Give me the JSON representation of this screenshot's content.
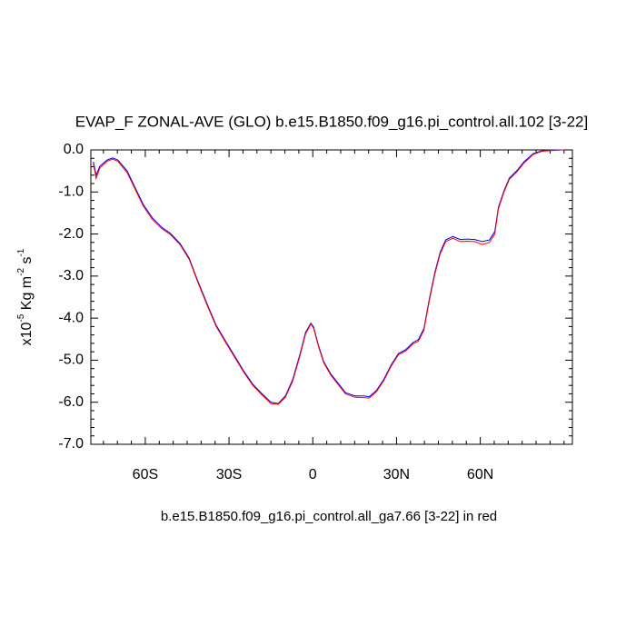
{
  "chart_data": {
    "type": "line",
    "title": "EVAP_F ZONAL-AVE (GLO) b.e15.B1850.f09_g16.pi_control.all.102 [3-22]",
    "ylabel_parts": [
      "x10",
      "-5",
      " Kg m",
      "-2",
      " s",
      "-1"
    ],
    "xlabel": "b.e15.B1850.f09_g16.pi_control.all_ga7.66 [3-22] in red",
    "xlim": [
      -79.5,
      93.0
    ],
    "ylim": [
      -7.0,
      0.0
    ],
    "xticks": [
      {
        "value": -60,
        "label": "60S"
      },
      {
        "value": -30,
        "label": "30S"
      },
      0,
      {
        "value": 30,
        "label": "30N"
      },
      {
        "value": 60,
        "label": "60N"
      }
    ],
    "xminorticks": [
      -75,
      -70,
      -65,
      -55,
      -50,
      -45,
      -40,
      -35,
      -25,
      -20,
      -15,
      -10,
      -5,
      5,
      10,
      15,
      20,
      25,
      35,
      40,
      45,
      50,
      55,
      65,
      70,
      75,
      80,
      85,
      90
    ],
    "yticks": [
      {
        "value": 0,
        "label": "0.0"
      },
      {
        "value": -1,
        "label": "-1.0"
      },
      {
        "value": -2,
        "label": "-2.0"
      },
      {
        "value": -3,
        "label": "-3.0"
      },
      {
        "value": -4,
        "label": "-4.0"
      },
      {
        "value": -5,
        "label": "-5.0"
      },
      {
        "value": -6,
        "label": "-6.0"
      },
      {
        "value": -7,
        "label": "-7.0"
      }
    ],
    "yminorticks": [
      -6.8,
      -6.6,
      -6.4,
      -6.2,
      -5.8,
      -5.6,
      -5.4,
      -5.2,
      -4.8,
      -4.6,
      -4.4,
      -4.2,
      -3.8,
      -3.6,
      -3.4,
      -3.2,
      -2.8,
      -2.6,
      -2.4,
      -2.2,
      -1.8,
      -1.6,
      -1.4,
      -1.2,
      -0.8,
      -0.6,
      -0.4,
      -0.2
    ],
    "x": [
      -78.6,
      -77.6,
      -76.3,
      -73.7,
      -71.7,
      -69.8,
      -66.5,
      -63.9,
      -60.7,
      -57.4,
      -54.1,
      -50.9,
      -47.6,
      -44.3,
      -41.1,
      -37.8,
      -34.6,
      -31.3,
      -28.0,
      -24.8,
      -21.5,
      -18.3,
      -15.0,
      -12.4,
      -9.8,
      -7.2,
      -4.6,
      -2.6,
      -0.7,
      0.3,
      2.0,
      3.9,
      6.5,
      9.1,
      11.7,
      15.0,
      18.3,
      20.2,
      22.8,
      25.4,
      28.0,
      30.7,
      33.3,
      35.9,
      37.8,
      39.8,
      41.7,
      43.7,
      45.6,
      47.6,
      50.2,
      52.8,
      55.4,
      58.0,
      60.7,
      63.3,
      65.2,
      66.5,
      68.5,
      70.4,
      73.0,
      75.7,
      78.9,
      82.2,
      86.7,
      90.0
    ],
    "series": [
      {
        "color": "#0000ff",
        "values": [
          -0.28,
          -0.6,
          -0.39,
          -0.24,
          -0.19,
          -0.24,
          -0.5,
          -0.86,
          -1.3,
          -1.62,
          -1.84,
          -1.99,
          -2.22,
          -2.57,
          -3.13,
          -3.67,
          -4.17,
          -4.54,
          -4.9,
          -5.25,
          -5.57,
          -5.79,
          -6.0,
          -6.03,
          -5.85,
          -5.46,
          -4.86,
          -4.34,
          -4.12,
          -4.21,
          -4.64,
          -5.03,
          -5.33,
          -5.55,
          -5.77,
          -5.85,
          -5.85,
          -5.87,
          -5.72,
          -5.46,
          -5.12,
          -4.84,
          -4.75,
          -4.58,
          -4.51,
          -4.25,
          -3.56,
          -2.92,
          -2.44,
          -2.14,
          -2.06,
          -2.13,
          -2.12,
          -2.13,
          -2.18,
          -2.14,
          -1.94,
          -1.36,
          -0.97,
          -0.67,
          -0.5,
          -0.28,
          -0.09,
          -0.02,
          0.0,
          0.0
        ]
      },
      {
        "color": "#ff0000",
        "values": [
          -0.32,
          -0.68,
          -0.43,
          -0.27,
          -0.22,
          -0.27,
          -0.54,
          -0.9,
          -1.34,
          -1.66,
          -1.87,
          -2.02,
          -2.25,
          -2.6,
          -3.16,
          -3.7,
          -4.2,
          -4.57,
          -4.93,
          -5.28,
          -5.6,
          -5.82,
          -6.03,
          -6.05,
          -5.88,
          -5.5,
          -4.9,
          -4.38,
          -4.14,
          -4.24,
          -4.67,
          -5.06,
          -5.36,
          -5.58,
          -5.8,
          -5.88,
          -5.89,
          -5.9,
          -5.75,
          -5.49,
          -5.15,
          -4.87,
          -4.78,
          -4.61,
          -4.55,
          -4.29,
          -3.6,
          -2.96,
          -2.48,
          -2.18,
          -2.1,
          -2.18,
          -2.17,
          -2.18,
          -2.25,
          -2.2,
          -2.0,
          -1.4,
          -1.0,
          -0.7,
          -0.53,
          -0.31,
          -0.11,
          -0.03,
          -0.01,
          0.0
        ]
      }
    ]
  }
}
